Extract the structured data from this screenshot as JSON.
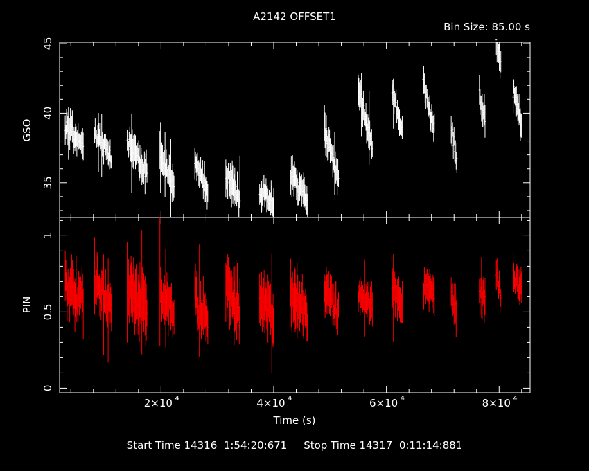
{
  "header": {
    "title": "A2142 OFFSET1",
    "bin_size": "Bin Size: 85.00 s"
  },
  "footer": {
    "start_label": "Start Time 14316",
    "start_time": "1:54:20:671",
    "stop_label": "Stop Time 14317",
    "stop_time": "0:11:14:881"
  },
  "colors": {
    "background": "#000000",
    "axes": "#ffffff",
    "gso": "#ffffff",
    "pin": "#ff0000"
  },
  "chart_data": [
    {
      "type": "scatter",
      "name": "gso-panel",
      "ylabel": "GSO",
      "xlim": [
        2000,
        85500
      ],
      "ylim": [
        32.5,
        45.1
      ],
      "yticks": [
        35,
        40,
        45
      ],
      "tick_labels": [
        "35",
        "40",
        "45"
      ],
      "segments": [
        {
          "x0": 3000,
          "x1": 6200,
          "y0": 39.2,
          "y1": 37.6,
          "err": 1.2
        },
        {
          "x0": 8200,
          "x1": 11200,
          "y0": 38.7,
          "y1": 36.8,
          "err": 1.0
        },
        {
          "x0": 14000,
          "x1": 17500,
          "y0": 37.8,
          "y1": 35.8,
          "err": 1.3
        },
        {
          "x0": 19800,
          "x1": 22300,
          "y0": 37.2,
          "y1": 34.8,
          "err": 1.2
        },
        {
          "x0": 26000,
          "x1": 28300,
          "y0": 36.3,
          "y1": 34.5,
          "err": 1.2
        },
        {
          "x0": 31500,
          "x1": 34000,
          "y0": 35.6,
          "y1": 33.8,
          "err": 1.4
        },
        {
          "x0": 37500,
          "x1": 40000,
          "y0": 34.6,
          "y1": 33.4,
          "err": 1.2
        },
        {
          "x0": 43000,
          "x1": 46000,
          "y0": 35.5,
          "y1": 33.5,
          "err": 1.3
        },
        {
          "x0": 49000,
          "x1": 51500,
          "y0": 38.8,
          "y1": 35.5,
          "err": 1.3
        },
        {
          "x0": 55000,
          "x1": 57500,
          "y0": 42.0,
          "y1": 37.5,
          "err": 1.2
        },
        {
          "x0": 61000,
          "x1": 62800,
          "y0": 41.5,
          "y1": 38.7,
          "err": 1.0
        },
        {
          "x0": 66500,
          "x1": 68500,
          "y0": 42.2,
          "y1": 38.8,
          "err": 1.1
        },
        {
          "x0": 71500,
          "x1": 72500,
          "y0": 38.8,
          "y1": 36.8,
          "err": 1.3
        },
        {
          "x0": 76500,
          "x1": 77500,
          "y0": 41.3,
          "y1": 39.8,
          "err": 1.2
        },
        {
          "x0": 79500,
          "x1": 80300,
          "y0": 45.0,
          "y1": 43.4,
          "err": 1.1
        },
        {
          "x0": 82500,
          "x1": 84000,
          "y0": 41.6,
          "y1": 39.3,
          "err": 1.2
        }
      ]
    },
    {
      "type": "scatter",
      "name": "pin-panel",
      "ylabel": "PIN",
      "xlabel": "Time (s)",
      "xlim": [
        2000,
        85500
      ],
      "ylim": [
        -0.03,
        1.12
      ],
      "yticks": [
        0,
        0.5,
        1
      ],
      "tick_labels": [
        "0",
        "0.5",
        "1"
      ],
      "xticks": [
        20000,
        40000,
        60000,
        80000
      ],
      "xtick_labels": [
        "2×10",
        "4×10",
        "6×10",
        "8×10"
      ],
      "xtick_exponent": "4",
      "segments": [
        {
          "x0": 3000,
          "x1": 6200,
          "y0": 0.7,
          "y1": 0.55,
          "err": 0.18
        },
        {
          "x0": 8200,
          "x1": 11200,
          "y0": 0.72,
          "y1": 0.52,
          "err": 0.15
        },
        {
          "x0": 14000,
          "x1": 17500,
          "y0": 0.66,
          "y1": 0.52,
          "err": 0.2
        },
        {
          "x0": 19800,
          "x1": 22300,
          "y0": 0.66,
          "y1": 0.48,
          "err": 0.17
        },
        {
          "x0": 26000,
          "x1": 28300,
          "y0": 0.6,
          "y1": 0.42,
          "err": 0.18
        },
        {
          "x0": 31500,
          "x1": 34000,
          "y0": 0.68,
          "y1": 0.5,
          "err": 0.22
        },
        {
          "x0": 37500,
          "x1": 40000,
          "y0": 0.62,
          "y1": 0.45,
          "err": 0.17
        },
        {
          "x0": 43000,
          "x1": 46000,
          "y0": 0.62,
          "y1": 0.46,
          "err": 0.18
        },
        {
          "x0": 49000,
          "x1": 51500,
          "y0": 0.64,
          "y1": 0.5,
          "err": 0.15
        },
        {
          "x0": 55000,
          "x1": 57500,
          "y0": 0.62,
          "y1": 0.55,
          "err": 0.13
        },
        {
          "x0": 61000,
          "x1": 62800,
          "y0": 0.66,
          "y1": 0.56,
          "err": 0.14
        },
        {
          "x0": 66500,
          "x1": 68500,
          "y0": 0.66,
          "y1": 0.62,
          "err": 0.12
        },
        {
          "x0": 71500,
          "x1": 72500,
          "y0": 0.6,
          "y1": 0.5,
          "err": 0.15
        },
        {
          "x0": 76500,
          "x1": 77500,
          "y0": 0.62,
          "y1": 0.58,
          "err": 0.13
        },
        {
          "x0": 79500,
          "x1": 80300,
          "y0": 0.72,
          "y1": 0.62,
          "err": 0.14
        },
        {
          "x0": 82500,
          "x1": 84000,
          "y0": 0.72,
          "y1": 0.66,
          "err": 0.12
        }
      ]
    }
  ]
}
